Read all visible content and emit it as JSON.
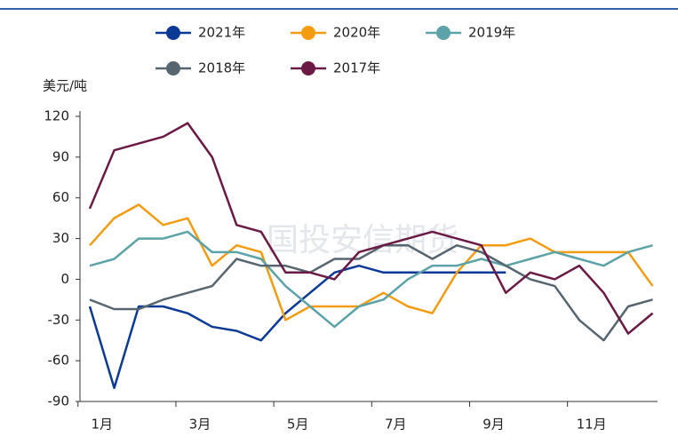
{
  "chart_data": {
    "type": "line",
    "y_label": "美元/吨",
    "watermark": "国投安信期货",
    "x": [
      0.75,
      1.25,
      1.75,
      2.25,
      2.75,
      3.25,
      3.75,
      4.25,
      4.75,
      5.25,
      5.75,
      6.25,
      6.75,
      7.25,
      7.75,
      8.25,
      8.75,
      9.25,
      9.75,
      10.25,
      10.75,
      11.25,
      11.75,
      12.25
    ],
    "xlim": [
      0.55,
      12.35
    ],
    "xticks": [
      {
        "value": 1,
        "label": "1月"
      },
      {
        "value": 3,
        "label": "3月"
      },
      {
        "value": 5,
        "label": "5月"
      },
      {
        "value": 7,
        "label": "7月"
      },
      {
        "value": 9,
        "label": "9月"
      },
      {
        "value": 11,
        "label": "11月"
      }
    ],
    "ylim": [
      -90,
      120
    ],
    "yticks": [
      -90,
      -60,
      -30,
      0,
      30,
      60,
      90,
      120
    ],
    "legend": "top",
    "series": [
      {
        "name": "2021年",
        "color": "#0b3a96",
        "values": [
          -20,
          -80,
          -20,
          -20,
          -25,
          -35,
          -38,
          -45,
          -25,
          -10,
          5,
          10,
          5,
          5,
          5,
          5,
          5,
          5,
          null,
          null,
          null,
          null,
          null,
          null
        ]
      },
      {
        "name": "2020年",
        "color": "#f39c12",
        "values": [
          25,
          45,
          55,
          40,
          45,
          10,
          25,
          20,
          -30,
          -20,
          -20,
          -20,
          -10,
          -20,
          -25,
          5,
          25,
          25,
          30,
          20,
          20,
          20,
          20,
          -5
        ]
      },
      {
        "name": "2019年",
        "color": "#5ba3a8",
        "values": [
          10,
          15,
          30,
          30,
          35,
          20,
          20,
          15,
          -5,
          -20,
          -35,
          -20,
          -15,
          0,
          10,
          10,
          15,
          10,
          15,
          20,
          15,
          10,
          20,
          25
        ]
      },
      {
        "name": "2018年",
        "color": "#56656f",
        "values": [
          -15,
          -22,
          -22,
          -15,
          -10,
          -5,
          15,
          10,
          10,
          5,
          15,
          15,
          25,
          25,
          15,
          25,
          20,
          10,
          0,
          -5,
          -30,
          -45,
          -20,
          -15
        ]
      },
      {
        "name": "2017年",
        "color": "#6b1a45",
        "values": [
          52,
          95,
          100,
          105,
          115,
          90,
          40,
          35,
          5,
          5,
          0,
          20,
          25,
          30,
          35,
          30,
          25,
          -10,
          5,
          0,
          10,
          -10,
          -40,
          -25
        ]
      }
    ]
  }
}
